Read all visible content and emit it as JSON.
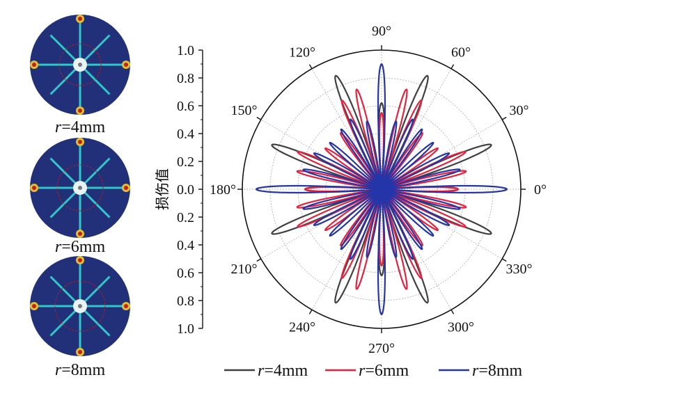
{
  "figure": {
    "thumbnails": [
      {
        "caption_var": "r",
        "caption_rest": "=4mm"
      },
      {
        "caption_var": "r",
        "caption_rest": "=6mm"
      },
      {
        "caption_var": "r",
        "caption_rest": "=8mm"
      }
    ]
  },
  "chart_data": {
    "type": "polar-line",
    "ylabel": "损伤值",
    "radial_axis": {
      "range": [
        0,
        1.0
      ],
      "ticks_top": [
        "1.0",
        "0.8",
        "0.6",
        "0.4",
        "0.2",
        "0.0"
      ],
      "ticks_bottom": [
        "0.2",
        "0.4",
        "0.6",
        "0.8",
        "1.0"
      ]
    },
    "angular_ticks": [
      {
        "deg": 0,
        "label": "0°"
      },
      {
        "deg": 30,
        "label": "30°"
      },
      {
        "deg": 60,
        "label": "60°"
      },
      {
        "deg": 90,
        "label": "90°"
      },
      {
        "deg": 120,
        "label": "120°"
      },
      {
        "deg": 150,
        "label": "150°"
      },
      {
        "deg": 180,
        "label": "180°"
      },
      {
        "deg": 210,
        "label": "210°"
      },
      {
        "deg": 240,
        "label": "240°"
      },
      {
        "deg": 270,
        "label": "270°"
      },
      {
        "deg": 300,
        "label": "300°"
      },
      {
        "deg": 330,
        "label": "330°"
      }
    ],
    "grid": true,
    "legend_position": "bottom",
    "series": [
      {
        "name_var": "r",
        "name_rest": "=4mm",
        "color": "#404040",
        "petals": [
          {
            "angle": 0,
            "r": 0.55
          },
          {
            "angle": 22,
            "r": 0.85
          },
          {
            "angle": 68,
            "r": 0.88
          },
          {
            "angle": 90,
            "r": 0.62
          },
          {
            "angle": 112,
            "r": 0.88
          },
          {
            "angle": 158,
            "r": 0.85
          },
          {
            "angle": 180,
            "r": 0.55
          },
          {
            "angle": 202,
            "r": 0.85
          },
          {
            "angle": 248,
            "r": 0.88
          },
          {
            "angle": 270,
            "r": 0.62
          },
          {
            "angle": 292,
            "r": 0.88
          },
          {
            "angle": 338,
            "r": 0.85
          }
        ]
      },
      {
        "name_var": "r",
        "name_rest": "=6mm",
        "color": "#e8203c",
        "petals": [
          {
            "angle": 0,
            "r": 0.55
          },
          {
            "angle": 12,
            "r": 0.62
          },
          {
            "angle": 24,
            "r": 0.66
          },
          {
            "angle": 36,
            "r": 0.5
          },
          {
            "angle": 54,
            "r": 0.5
          },
          {
            "angle": 66,
            "r": 0.7
          },
          {
            "angle": 76,
            "r": 0.74
          },
          {
            "angle": 90,
            "r": 0.55
          },
          {
            "angle": 104,
            "r": 0.74
          },
          {
            "angle": 114,
            "r": 0.7
          },
          {
            "angle": 126,
            "r": 0.5
          },
          {
            "angle": 144,
            "r": 0.5
          },
          {
            "angle": 156,
            "r": 0.66
          },
          {
            "angle": 168,
            "r": 0.62
          },
          {
            "angle": 180,
            "r": 0.55
          },
          {
            "angle": 192,
            "r": 0.62
          },
          {
            "angle": 204,
            "r": 0.66
          },
          {
            "angle": 216,
            "r": 0.5
          },
          {
            "angle": 234,
            "r": 0.5
          },
          {
            "angle": 246,
            "r": 0.7
          },
          {
            "angle": 256,
            "r": 0.74
          },
          {
            "angle": 270,
            "r": 0.55
          },
          {
            "angle": 284,
            "r": 0.74
          },
          {
            "angle": 294,
            "r": 0.7
          },
          {
            "angle": 306,
            "r": 0.5
          },
          {
            "angle": 324,
            "r": 0.5
          },
          {
            "angle": 336,
            "r": 0.66
          },
          {
            "angle": 348,
            "r": 0.62
          }
        ]
      },
      {
        "name_var": "r",
        "name_rest": "=8mm",
        "color": "#2335a8",
        "petals": [
          {
            "angle": 0,
            "r": 0.9
          },
          {
            "angle": 14,
            "r": 0.58
          },
          {
            "angle": 28,
            "r": 0.55
          },
          {
            "angle": 42,
            "r": 0.5
          },
          {
            "angle": 56,
            "r": 0.52
          },
          {
            "angle": 66,
            "r": 0.55
          },
          {
            "angle": 78,
            "r": 0.5
          },
          {
            "angle": 90,
            "r": 0.9
          },
          {
            "angle": 102,
            "r": 0.5
          },
          {
            "angle": 114,
            "r": 0.55
          },
          {
            "angle": 124,
            "r": 0.52
          },
          {
            "angle": 138,
            "r": 0.5
          },
          {
            "angle": 152,
            "r": 0.55
          },
          {
            "angle": 166,
            "r": 0.58
          },
          {
            "angle": 180,
            "r": 0.9
          },
          {
            "angle": 194,
            "r": 0.58
          },
          {
            "angle": 208,
            "r": 0.55
          },
          {
            "angle": 222,
            "r": 0.5
          },
          {
            "angle": 236,
            "r": 0.52
          },
          {
            "angle": 246,
            "r": 0.55
          },
          {
            "angle": 258,
            "r": 0.5
          },
          {
            "angle": 270,
            "r": 0.9
          },
          {
            "angle": 282,
            "r": 0.5
          },
          {
            "angle": 294,
            "r": 0.55
          },
          {
            "angle": 304,
            "r": 0.52
          },
          {
            "angle": 318,
            "r": 0.5
          },
          {
            "angle": 332,
            "r": 0.55
          },
          {
            "angle": 346,
            "r": 0.58
          }
        ]
      }
    ]
  }
}
